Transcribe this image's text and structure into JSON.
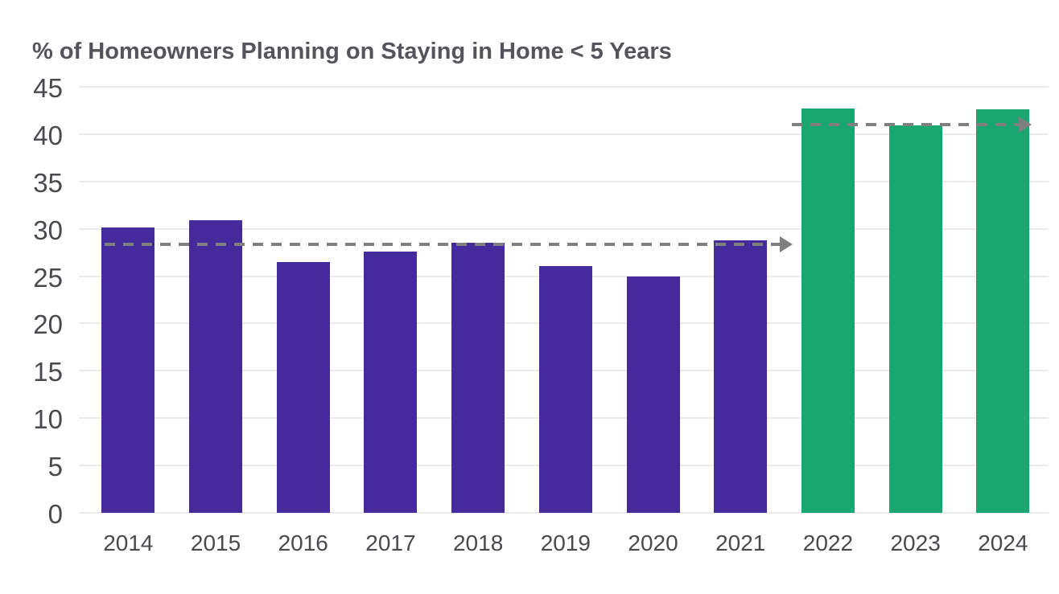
{
  "page": {
    "background": "#FFFFFF"
  },
  "chart_data": {
    "type": "bar",
    "title": "% of Homeowners Planning on Staying in Home < 5 Years",
    "categories": [
      "2014",
      "2015",
      "2016",
      "2017",
      "2018",
      "2019",
      "2020",
      "2021",
      "2022",
      "2023",
      "2024"
    ],
    "values": [
      30.1,
      30.9,
      26.5,
      27.6,
      28.5,
      26.1,
      25.0,
      28.8,
      42.7,
      40.9,
      42.6
    ],
    "bar_colors": [
      "#452A9B",
      "#452A9B",
      "#452A9B",
      "#452A9B",
      "#452A9B",
      "#452A9B",
      "#452A9B",
      "#452A9B",
      "#1AA671",
      "#1AA671",
      "#1AA671"
    ],
    "xlabel": "",
    "ylabel": "",
    "ylim": [
      0,
      45
    ],
    "yticks": [
      0,
      5,
      10,
      15,
      20,
      25,
      30,
      35,
      40,
      45
    ],
    "grid": true,
    "legend_position": "none",
    "annotations": [
      {
        "type": "dashed-arrow-right",
        "y": 28.4,
        "x_start_frac": 0.0266,
        "x_end_frac": 0.7361,
        "color": "#7F7F7F",
        "spans": "2014 bar through just past 2021 bar"
      },
      {
        "type": "dashed-arrow-right",
        "y": 41.0,
        "x_start_frac": 0.7353,
        "x_end_frac": 0.9825,
        "color": "#7F7F7F",
        "spans": "just before 2022 bar through right edge of 2024 bar"
      }
    ]
  },
  "colors": {
    "purple_bars": "#452A9B",
    "green_bars": "#1AA671",
    "title_text": "#55545A",
    "axis_text": "#4A4A4E",
    "gridline": "#EBEBEB",
    "dashed_line": "#7F7F7F",
    "background": "#FFFFFF"
  }
}
